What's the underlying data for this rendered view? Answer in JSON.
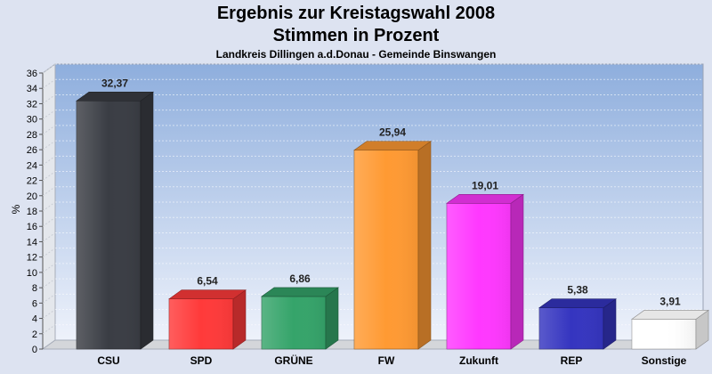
{
  "chart_data": {
    "type": "bar",
    "title": "Ergebnis zur Kreistagswahl 2008",
    "subtitle": "Stimmen in Prozent",
    "caption": "Landkreis Dillingen a.d.Donau - Gemeinde Binswangen",
    "ylabel": "%",
    "xlabel": "",
    "ylim": [
      0,
      36
    ],
    "ytick_step": 2,
    "grid": true,
    "categories": [
      "CSU",
      "SPD",
      "GRÜNE",
      "FW",
      "Zukunft",
      "REP",
      "Sonstige"
    ],
    "values": [
      32.37,
      6.54,
      6.86,
      25.94,
      19.01,
      5.38,
      3.91
    ],
    "value_labels": [
      "32,37",
      "6,54",
      "6,86",
      "25,94",
      "19,01",
      "5,38",
      "3,91"
    ],
    "colors": [
      "#3a3d44",
      "#ff3a3a",
      "#35a46a",
      "#ff9a33",
      "#ff38ff",
      "#3535c0",
      "#ffffff"
    ]
  }
}
